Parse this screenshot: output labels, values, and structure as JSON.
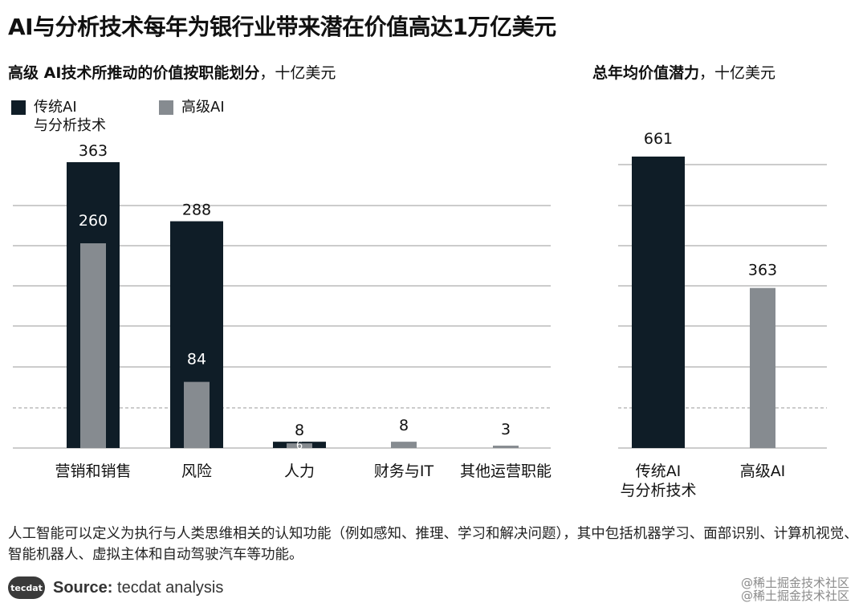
{
  "title": "AI与分析技术每年为银行业带来潜在价值高达1万亿美元",
  "left_subtitle": {
    "bold": "高级 AI技术所推动的价值按职能划分",
    "rest": "，十亿美元"
  },
  "right_subtitle": {
    "bold": "总年均价值潜力",
    "rest": "，十亿美元"
  },
  "legend": [
    {
      "label": "传统AI\n与分析技术",
      "color": "#0f1d27"
    },
    {
      "label": "高级AI",
      "color": "#868b90"
    }
  ],
  "colors": {
    "traditional": "#0f1d27",
    "advanced": "#868b90",
    "grid": "#9a9a9a"
  },
  "chart_data": [
    {
      "type": "bar",
      "categories": [
        "营销和销售",
        "风险",
        "人力",
        "财务与IT",
        "其他运营职能"
      ],
      "series": [
        {
          "name": "传统AI\n与分析技术",
          "values": [
            363,
            288,
            8,
            null,
            null
          ]
        },
        {
          "name": "高级AI",
          "values": [
            260,
            84,
            6,
            8,
            3
          ]
        }
      ],
      "value_labels": {
        "traditional": [
          "363",
          "288",
          "8",
          "",
          ""
        ],
        "advanced": [
          "260",
          "84",
          "6",
          "8",
          "3"
        ]
      },
      "ylim": [
        0,
        350
      ],
      "grid": true
    },
    {
      "type": "bar",
      "categories": [
        "传统AI\n与分析技术",
        "高级AI"
      ],
      "values": [
        661,
        363
      ],
      "value_labels": [
        "661",
        "363"
      ],
      "ylim": [
        0,
        700
      ],
      "grid": true
    }
  ],
  "footnote": "人工智能可以定义为执行与人类思维相关的认知功能（例如感知、推理、学习和解决问题），其中包括机器学习、面部识别、计算机视觉、智能机器人、虚拟主体和自动驾驶汽车等功能。",
  "source": {
    "logo_text": "tecdat",
    "label": "Source:",
    "text": "tecdat analysis"
  },
  "watermark": [
    "@稀土掘金技术社区",
    "@稀土掘金技术社区"
  ]
}
